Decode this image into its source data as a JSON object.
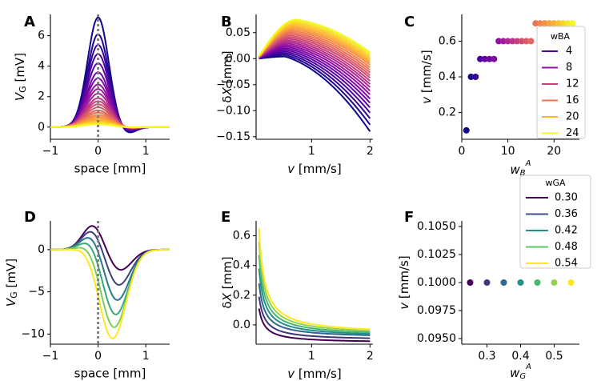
{
  "palette": {
    "plasma": [
      "#0d0887",
      "#5302a3",
      "#8b0aa5",
      "#b83289",
      "#db5c68",
      "#f48849",
      "#febd2a",
      "#f0f921"
    ],
    "viridis": [
      "#440154",
      "#3b528b",
      "#21918c",
      "#5ec962",
      "#fde725"
    ],
    "axis": "#000000",
    "dashed_line": "#808080"
  },
  "chart_data": [
    {
      "panel": "A",
      "type": "line",
      "xlabel": "space [mm]",
      "ylabel": "V_G [mV]",
      "xlim": [
        -1,
        1.5
      ],
      "ylim": [
        -0.8,
        7.4
      ],
      "xticks": [
        "−1",
        "0",
        "1"
      ],
      "yticks": [
        "0",
        "2",
        "4",
        "6"
      ],
      "marker_x": 0,
      "series_count": 24,
      "peak_amplitudes": [
        7.2,
        6.1,
        5.4,
        4.8,
        4.2,
        3.6,
        3.2,
        2.8,
        2.5,
        2.2,
        1.9,
        1.7,
        1.5,
        1.3,
        1.1,
        0.95,
        0.8,
        0.68,
        0.56,
        0.46,
        0.38,
        0.3,
        0.24,
        0.18
      ]
    },
    {
      "panel": "B",
      "type": "line",
      "xlabel": "v [mm/s]",
      "ylabel": "δX [mm]",
      "xlim": [
        0.05,
        2.05
      ],
      "ylim": [
        -0.155,
        0.085
      ],
      "xticks": [
        "1",
        "2"
      ],
      "yticks": [
        "0.05",
        "0.00",
        "−0.05",
        "−0.10",
        "−0.15"
      ],
      "series_count": 24,
      "end_values": [
        -0.14,
        -0.127,
        -0.115,
        -0.104,
        -0.094,
        -0.085,
        -0.077,
        -0.069,
        -0.062,
        -0.055,
        -0.049,
        -0.043,
        -0.037,
        -0.032,
        -0.027,
        -0.022,
        -0.017,
        -0.012,
        -0.008,
        -0.004,
        0.0,
        0.004,
        0.008,
        0.012
      ]
    },
    {
      "panel": "C",
      "type": "scatter",
      "xlabel": "w_B^A",
      "ylabel": "v [mm/s]",
      "xlim": [
        0,
        25.5
      ],
      "ylim": [
        0.05,
        0.75
      ],
      "xticks": [
        "0",
        "10",
        "20"
      ],
      "yticks": [
        "0.2",
        "0.4",
        "0.6"
      ],
      "x": [
        1,
        2,
        3,
        4,
        5,
        6,
        7,
        8,
        9,
        10,
        11,
        12,
        13,
        14,
        15,
        16,
        17,
        18,
        19,
        20,
        21,
        22,
        23,
        24
      ],
      "y": [
        0.1,
        0.4,
        0.4,
        0.5,
        0.5,
        0.5,
        0.5,
        0.6,
        0.6,
        0.6,
        0.6,
        0.6,
        0.6,
        0.6,
        0.6,
        0.7,
        0.7,
        0.7,
        0.7,
        0.7,
        0.7,
        0.7,
        0.7,
        0.7
      ],
      "legend": {
        "title": "wBA",
        "labels": [
          "4",
          "8",
          "12",
          "16",
          "20",
          "24"
        ],
        "placement": "right"
      }
    },
    {
      "panel": "D",
      "type": "line",
      "xlabel": "space [mm]",
      "ylabel": "V_G [mV]",
      "xlim": [
        -1,
        1.5
      ],
      "ylim": [
        -11.2,
        3.4
      ],
      "xticks": [
        "−1",
        "0",
        "1"
      ],
      "yticks": [
        "0",
        "−5",
        "−10"
      ],
      "marker_x": 0,
      "series": [
        {
          "peak": 3.0,
          "trough": -2.5
        },
        {
          "peak": 2.5,
          "trough": -4.3
        },
        {
          "peak": 2.0,
          "trough": -6.1
        },
        {
          "peak": 1.5,
          "trough": -7.8
        },
        {
          "peak": 1.0,
          "trough": -9.3
        },
        {
          "peak": 0.6,
          "trough": -10.6
        }
      ]
    },
    {
      "panel": "E",
      "type": "line",
      "xlabel": "v [mm/s]",
      "ylabel": "δX [mm]",
      "xlim": [
        0.05,
        2.05
      ],
      "ylim": [
        -0.13,
        0.7
      ],
      "xticks": [
        "1",
        "2"
      ],
      "yticks": [
        "0.0",
        "0.2",
        "0.4",
        "0.6"
      ],
      "series": [
        {
          "start": 0.11,
          "end": -0.11
        },
        {
          "start": 0.19,
          "end": -0.09
        },
        {
          "start": 0.28,
          "end": -0.07
        },
        {
          "start": 0.38,
          "end": -0.06
        },
        {
          "start": 0.47,
          "end": -0.05
        },
        {
          "start": 0.56,
          "end": -0.04
        },
        {
          "start": 0.65,
          "end": -0.03
        }
      ]
    },
    {
      "panel": "F",
      "type": "scatter",
      "xlabel": "w_G^A",
      "ylabel": "v [mm/s]",
      "xlim": [
        0.225,
        0.575
      ],
      "ylim": [
        0.0945,
        0.1055
      ],
      "xticks": [
        "0.3",
        "0.4",
        "0.5"
      ],
      "yticks": [
        "0.1050",
        "0.1025",
        "0.1000",
        "0.0975",
        "0.0950"
      ],
      "x": [
        0.25,
        0.3,
        0.35,
        0.4,
        0.45,
        0.5,
        0.55
      ],
      "y": [
        0.1,
        0.1,
        0.1,
        0.1,
        0.1,
        0.1,
        0.1
      ],
      "legend": {
        "title": "wGA",
        "labels": [
          "0.30",
          "0.36",
          "0.42",
          "0.48",
          "0.54"
        ],
        "placement": "top-right"
      }
    }
  ]
}
